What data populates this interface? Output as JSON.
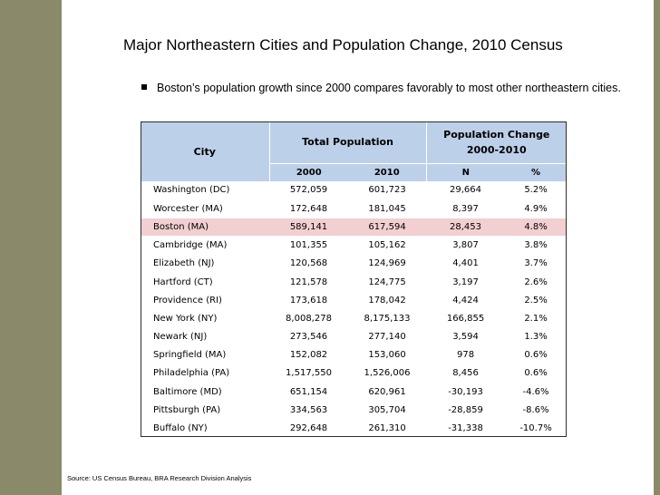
{
  "colors": {
    "sidebar": "#8a8a6a",
    "header_fill": "#bdd0e9",
    "highlight_row": "#f2cfd1"
  },
  "title": "Major Northeastern Cities and Population Change, 2010 Census",
  "bullet": "Boston’s population growth since 2000 compares favorably to most other northeastern cities.",
  "table": {
    "city_header": "City",
    "total_header": "Total Population",
    "change_header": "Population Change",
    "change_period": "2000-2010",
    "sub_headers": [
      "2000",
      "2010",
      "N",
      "%"
    ],
    "highlight_city": "Boston (MA)",
    "rows": [
      {
        "city": "Washington (DC)",
        "p2000": "572,059",
        "p2010": "601,723",
        "n": "29,664",
        "pct": "5.2%"
      },
      {
        "city": "Worcester (MA)",
        "p2000": "172,648",
        "p2010": "181,045",
        "n": "8,397",
        "pct": "4.9%"
      },
      {
        "city": "Boston (MA)",
        "p2000": "589,141",
        "p2010": "617,594",
        "n": "28,453",
        "pct": "4.8%"
      },
      {
        "city": "Cambridge (MA)",
        "p2000": "101,355",
        "p2010": "105,162",
        "n": "3,807",
        "pct": "3.8%"
      },
      {
        "city": "Elizabeth (NJ)",
        "p2000": "120,568",
        "p2010": "124,969",
        "n": "4,401",
        "pct": "3.7%"
      },
      {
        "city": "Hartford (CT)",
        "p2000": "121,578",
        "p2010": "124,775",
        "n": "3,197",
        "pct": "2.6%"
      },
      {
        "city": "Providence (RI)",
        "p2000": "173,618",
        "p2010": "178,042",
        "n": "4,424",
        "pct": "2.5%"
      },
      {
        "city": "New York (NY)",
        "p2000": "8,008,278",
        "p2010": "8,175,133",
        "n": "166,855",
        "pct": "2.1%"
      },
      {
        "city": "Newark (NJ)",
        "p2000": "273,546",
        "p2010": "277,140",
        "n": "3,594",
        "pct": "1.3%"
      },
      {
        "city": "Springfield (MA)",
        "p2000": "152,082",
        "p2010": "153,060",
        "n": "978",
        "pct": "0.6%"
      },
      {
        "city": "Philadelphia (PA)",
        "p2000": "1,517,550",
        "p2010": "1,526,006",
        "n": "8,456",
        "pct": "0.6%"
      },
      {
        "city": "Baltimore (MD)",
        "p2000": "651,154",
        "p2010": "620,961",
        "n": "-30,193",
        "pct": "-4.6%"
      },
      {
        "city": "Pittsburgh (PA)",
        "p2000": "334,563",
        "p2010": "305,704",
        "n": "-28,859",
        "pct": "-8.6%"
      },
      {
        "city": "Buffalo (NY)",
        "p2000": "292,648",
        "p2010": "261,310",
        "n": "-31,338",
        "pct": "-10.7%"
      }
    ]
  },
  "source": "Source: US Census Bureau, BRA Research Division Analysis"
}
